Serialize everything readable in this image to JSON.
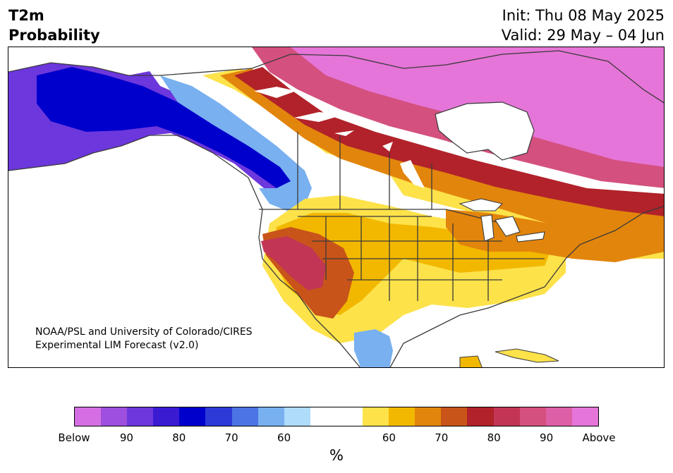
{
  "title": {
    "line1": "T2m",
    "line2": "Probability",
    "init": "Init: Thu 08 May 2025",
    "valid": "Valid: 29 May – 04 Jun"
  },
  "credit": {
    "line1": "NOAA/PSL and University of Colorado/CIRES",
    "line2": "Experimental LIM Forecast (v2.0)"
  },
  "colorbar": {
    "colors": [
      "#d56ee3",
      "#9e4fde",
      "#6c37dc",
      "#3a1bd2",
      "#0000cc",
      "#2d3ad8",
      "#4c74e4",
      "#78b0f0",
      "#aedcfa",
      "#ffffff",
      "#ffffff",
      "#fde24a",
      "#f2b800",
      "#e2850c",
      "#c8541a",
      "#b1222a",
      "#c23555",
      "#d4507e",
      "#dd5fa6",
      "#e575d8"
    ],
    "ticks": [
      "Below",
      "90",
      "80",
      "70",
      "60",
      "60",
      "70",
      "80",
      "90",
      "Above"
    ],
    "unit": "%"
  },
  "map_colors": {
    "cold_strong": "#0000cc",
    "cold_mid": "#3a1bd2",
    "cold_light": "#6c37dc",
    "cold_pale": "#78b0f0",
    "cold_faint": "#aedcfa",
    "warm_yellow": "#fde24a",
    "warm_gold": "#f2b800",
    "warm_orange": "#e2850c",
    "warm_rust": "#c8541a",
    "warm_red": "#b1222a",
    "warm_rose": "#c23555",
    "warm_pink": "#d4507e",
    "warm_magenta": "#e575d8",
    "coast": "#3a3a3a"
  }
}
